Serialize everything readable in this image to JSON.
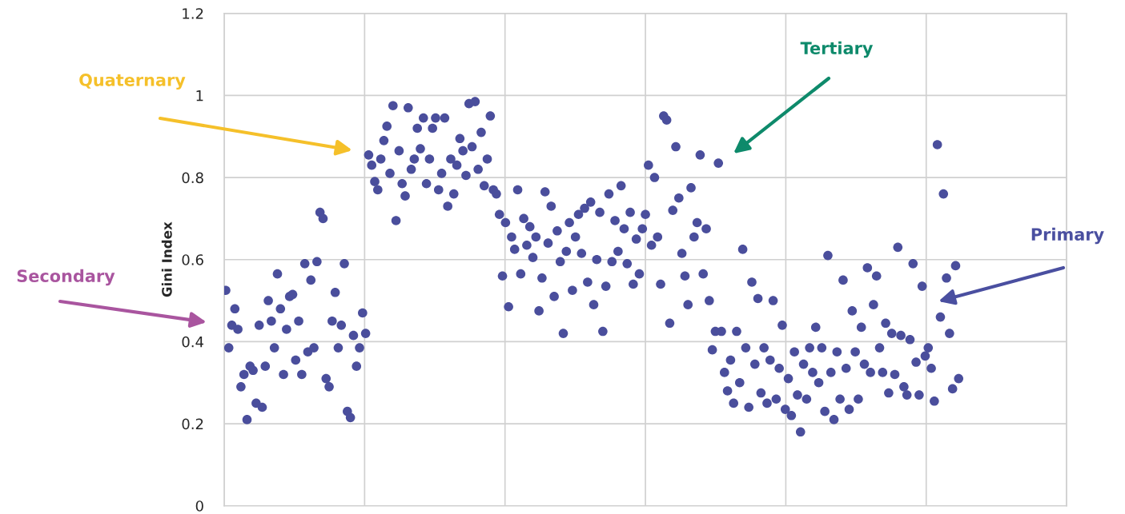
{
  "chart_data": {
    "type": "scatter",
    "ylabel": "Gini Index",
    "annotations": [
      "Quaternary",
      "Tertiary",
      "Secondary",
      "Primary"
    ],
    "ylim": [
      0,
      1.2
    ],
    "yticks": [
      0,
      0.2,
      0.4,
      0.6,
      0.8,
      1,
      1.2
    ],
    "grid": true,
    "marker": "circle",
    "categories": [
      null,
      null,
      null,
      null,
      null,
      null,
      null,
      null,
      null,
      null,
      null,
      null,
      null,
      null,
      null,
      null,
      null,
      null,
      null,
      null,
      null,
      null,
      null,
      null,
      null,
      null,
      null,
      null,
      null,
      null,
      null,
      null,
      null,
      null,
      null,
      null,
      null,
      null,
      null,
      null,
      null,
      null,
      null,
      null,
      null,
      null,
      null,
      null,
      null,
      null,
      null,
      null,
      null,
      null,
      null,
      null,
      null,
      null,
      null,
      null,
      null,
      null,
      null,
      null,
      null,
      null,
      null,
      null,
      null,
      null,
      null,
      null,
      null,
      null,
      null,
      null,
      null,
      null,
      null,
      null,
      null,
      null,
      null,
      null,
      null,
      null,
      null,
      null,
      null,
      null,
      null,
      null,
      null,
      null,
      null,
      null,
      null,
      null,
      null,
      null,
      null,
      null,
      null,
      null,
      null,
      null,
      null,
      null,
      null,
      null,
      null,
      null,
      null,
      null,
      null,
      null,
      null,
      null,
      null,
      null,
      null,
      null,
      null,
      null,
      null,
      null,
      null,
      null,
      null,
      null,
      null,
      null,
      null,
      null,
      null,
      null,
      null,
      null,
      null,
      null,
      null,
      null,
      null,
      null,
      null,
      null,
      null,
      null,
      null,
      null,
      null,
      null,
      null,
      null,
      null,
      null,
      null,
      null,
      null,
      null,
      null,
      null,
      null,
      null,
      null,
      null,
      null,
      null,
      null,
      null,
      null,
      null,
      null,
      null,
      null,
      null,
      null,
      null,
      null,
      null,
      null,
      null,
      null,
      null,
      null,
      null,
      null,
      null,
      null,
      null,
      null,
      null,
      null,
      null,
      null,
      null,
      null,
      null,
      null,
      null,
      null,
      null,
      null,
      null,
      null,
      null,
      null,
      null,
      null,
      null,
      null,
      null,
      null,
      null,
      null,
      null,
      null,
      null,
      null,
      null,
      null,
      null,
      null,
      null,
      null,
      null,
      null,
      null,
      null,
      null,
      null,
      null,
      null,
      null,
      null,
      null,
      null,
      null,
      null,
      null,
      null,
      null,
      null,
      null,
      null,
      null,
      null,
      null,
      null,
      null,
      null,
      null,
      null,
      null,
      null,
      null,
      null,
      null,
      null,
      null,
      null,
      null,
      null,
      null,
      null,
      null,
      null,
      null,
      null,
      null,
      null,
      null,
      null,
      null,
      null,
      null,
      null
    ],
    "series": [
      {
        "color": "#4a4e9c",
        "values": [
          0.525,
          0.385,
          0.44,
          0.48,
          0.43,
          0.29,
          0.32,
          0.21,
          0.34,
          0.33,
          0.25,
          0.44,
          0.24,
          0.34,
          0.5,
          0.45,
          0.385,
          0.565,
          0.48,
          0.32,
          0.43,
          0.51,
          0.515,
          0.355,
          0.45,
          0.32,
          0.59,
          0.375,
          0.55,
          0.385,
          0.595,
          0.715,
          0.7,
          0.31,
          0.29,
          0.45,
          0.52,
          0.385,
          0.44,
          0.59,
          0.23,
          0.215,
          0.415,
          0.34,
          0.385,
          0.47,
          0.42,
          0.855,
          0.83,
          0.79,
          0.77,
          0.845,
          0.89,
          0.925,
          0.81,
          0.975,
          0.695,
          0.865,
          0.785,
          0.755,
          0.97,
          0.82,
          0.845,
          0.92,
          0.87,
          0.945,
          0.785,
          0.845,
          0.92,
          0.945,
          0.77,
          0.81,
          0.945,
          0.73,
          0.845,
          0.76,
          0.83,
          0.895,
          0.865,
          0.805,
          0.98,
          0.875,
          0.985,
          0.82,
          0.91,
          0.78,
          0.845,
          0.95,
          0.77,
          0.76,
          0.71,
          0.56,
          0.69,
          0.485,
          0.655,
          0.625,
          0.77,
          0.565,
          0.7,
          0.635,
          0.68,
          0.605,
          0.655,
          0.475,
          0.555,
          0.765,
          0.64,
          0.73,
          0.51,
          0.67,
          0.595,
          0.42,
          0.62,
          0.69,
          0.525,
          0.655,
          0.71,
          0.615,
          0.725,
          0.545,
          0.74,
          0.49,
          0.6,
          0.715,
          0.425,
          0.535,
          0.76,
          0.595,
          0.695,
          0.62,
          0.78,
          0.675,
          0.59,
          0.715,
          0.54,
          0.65,
          0.565,
          0.675,
          0.71,
          0.83,
          0.635,
          0.8,
          0.655,
          0.54,
          0.95,
          0.94,
          0.445,
          0.72,
          0.875,
          0.75,
          0.615,
          0.56,
          0.49,
          0.775,
          0.655,
          0.69,
          0.855,
          0.565,
          0.675,
          0.5,
          0.38,
          0.425,
          0.835,
          0.425,
          0.325,
          0.28,
          0.355,
          0.25,
          0.425,
          0.3,
          0.625,
          0.385,
          0.24,
          0.545,
          0.345,
          0.505,
          0.275,
          0.385,
          0.25,
          0.355,
          0.5,
          0.26,
          0.335,
          0.44,
          0.235,
          0.31,
          0.22,
          0.375,
          0.27,
          0.18,
          0.345,
          0.26,
          0.385,
          0.325,
          0.435,
          0.3,
          0.385,
          0.23,
          0.61,
          0.325,
          0.21,
          0.375,
          0.26,
          0.55,
          0.335,
          0.235,
          0.475,
          0.375,
          0.26,
          0.435,
          0.345,
          0.58,
          0.325,
          0.49,
          0.56,
          0.385,
          0.325,
          0.445,
          0.275,
          0.42,
          0.32,
          0.63,
          0.415,
          0.29,
          0.27,
          0.405,
          0.59,
          0.35,
          0.27,
          0.535,
          0.365,
          0.385,
          0.335,
          0.255,
          0.88,
          0.46,
          0.76,
          0.555,
          0.42,
          0.285,
          0.585,
          0.31,
          null,
          null,
          null,
          null,
          null,
          null,
          null,
          null,
          null,
          null,
          null,
          null,
          null,
          null,
          null,
          null,
          null,
          null,
          null,
          null,
          null,
          null,
          null,
          null,
          null,
          null,
          null,
          null,
          null,
          null,
          null,
          null,
          null,
          null,
          null
        ]
      }
    ]
  }
}
